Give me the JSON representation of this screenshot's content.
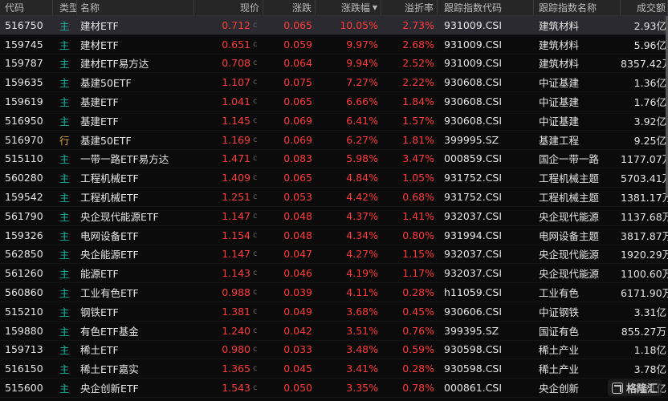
{
  "header": {
    "code": "代码",
    "type": "类型",
    "name": "名称",
    "price": "现价",
    "change": "涨跌",
    "pct": "涨跌幅",
    "premium": "溢折率",
    "index_code": "跟踪指数代码",
    "index_name": "跟踪指数名称",
    "volume": "成交额"
  },
  "price_suffix": "c",
  "colors": {
    "up": "#ff3b3b",
    "main_tag": "#18b6a4",
    "hang_tag": "#e0a030",
    "background": "#0b0b0b"
  },
  "rows": [
    {
      "code": "516750",
      "type": "主",
      "name": "建材ETF",
      "price": "0.712",
      "change": "0.065",
      "pct": "10.05%",
      "premium": "2.73%",
      "index_code": "931009.CSI",
      "index_name": "建筑材料",
      "volume": "2.93亿"
    },
    {
      "code": "159745",
      "type": "主",
      "name": "建材ETF",
      "price": "0.651",
      "change": "0.059",
      "pct": "9.97%",
      "premium": "2.68%",
      "index_code": "931009.CSI",
      "index_name": "建筑材料",
      "volume": "5.96亿"
    },
    {
      "code": "159787",
      "type": "主",
      "name": "建材ETF易方达",
      "price": "0.708",
      "change": "0.064",
      "pct": "9.94%",
      "premium": "2.52%",
      "index_code": "931009.CSI",
      "index_name": "建筑材料",
      "volume": "8357.42万"
    },
    {
      "code": "159635",
      "type": "主",
      "name": "基建50ETF",
      "price": "1.107",
      "change": "0.075",
      "pct": "7.27%",
      "premium": "2.22%",
      "index_code": "930608.CSI",
      "index_name": "中证基建",
      "volume": "1.36亿"
    },
    {
      "code": "159619",
      "type": "主",
      "name": "基建ETF",
      "price": "1.041",
      "change": "0.065",
      "pct": "6.66%",
      "premium": "1.84%",
      "index_code": "930608.CSI",
      "index_name": "中证基建",
      "volume": "1.76亿"
    },
    {
      "code": "516950",
      "type": "主",
      "name": "基建ETF",
      "price": "1.145",
      "change": "0.069",
      "pct": "6.41%",
      "premium": "1.57%",
      "index_code": "930608.CSI",
      "index_name": "中证基建",
      "volume": "3.92亿"
    },
    {
      "code": "516970",
      "type": "行",
      "name": "基建50ETF",
      "price": "1.169",
      "change": "0.069",
      "pct": "6.27%",
      "premium": "1.81%",
      "index_code": "399995.SZ",
      "index_name": "基建工程",
      "volume": "9.25亿"
    },
    {
      "code": "515110",
      "type": "主",
      "name": "一带一路ETF易方达",
      "price": "1.471",
      "change": "0.083",
      "pct": "5.98%",
      "premium": "3.47%",
      "index_code": "000859.CSI",
      "index_name": "国企一带一路",
      "volume": "1177.07万"
    },
    {
      "code": "560280",
      "type": "主",
      "name": "工程机械ETF",
      "price": "1.409",
      "change": "0.065",
      "pct": "4.84%",
      "premium": "1.05%",
      "index_code": "931752.CSI",
      "index_name": "工程机械主题",
      "volume": "5703.41万"
    },
    {
      "code": "159542",
      "type": "主",
      "name": "工程机械ETF",
      "price": "1.251",
      "change": "0.053",
      "pct": "4.42%",
      "premium": "0.68%",
      "index_code": "931752.CSI",
      "index_name": "工程机械主题",
      "volume": "1381.17万"
    },
    {
      "code": "561790",
      "type": "主",
      "name": "央企现代能源ETF",
      "price": "1.147",
      "change": "0.048",
      "pct": "4.37%",
      "premium": "1.41%",
      "index_code": "932037.CSI",
      "index_name": "央企现代能源",
      "volume": "1137.68万"
    },
    {
      "code": "159326",
      "type": "主",
      "name": "电网设备ETF",
      "price": "1.154",
      "change": "0.048",
      "pct": "4.34%",
      "premium": "0.80%",
      "index_code": "931994.CSI",
      "index_name": "电网设备主题",
      "volume": "3817.87万"
    },
    {
      "code": "562850",
      "type": "主",
      "name": "央企能源ETF",
      "price": "1.147",
      "change": "0.047",
      "pct": "4.27%",
      "premium": "1.15%",
      "index_code": "932037.CSI",
      "index_name": "央企现代能源",
      "volume": "1920.29万"
    },
    {
      "code": "561260",
      "type": "主",
      "name": "能源ETF",
      "price": "1.143",
      "change": "0.046",
      "pct": "4.19%",
      "premium": "1.17%",
      "index_code": "932037.CSI",
      "index_name": "央企现代能源",
      "volume": "1100.60万"
    },
    {
      "code": "560860",
      "type": "主",
      "name": "工业有色ETF",
      "price": "0.988",
      "change": "0.039",
      "pct": "4.11%",
      "premium": "0.28%",
      "index_code": "h11059.CSI",
      "index_name": "工业有色",
      "volume": "6171.90万"
    },
    {
      "code": "515210",
      "type": "主",
      "name": "钢铁ETF",
      "price": "1.381",
      "change": "0.049",
      "pct": "3.68%",
      "premium": "0.45%",
      "index_code": "930606.CSI",
      "index_name": "中证钢铁",
      "volume": "3.31亿"
    },
    {
      "code": "159880",
      "type": "主",
      "name": "有色ETF基金",
      "price": "1.240",
      "change": "0.042",
      "pct": "3.51%",
      "premium": "0.76%",
      "index_code": "399395.SZ",
      "index_name": "国证有色",
      "volume": "855.27万"
    },
    {
      "code": "159713",
      "type": "主",
      "name": "稀土ETF",
      "price": "0.980",
      "change": "0.033",
      "pct": "3.48%",
      "premium": "0.59%",
      "index_code": "930598.CSI",
      "index_name": "稀土产业",
      "volume": "1.18亿"
    },
    {
      "code": "516150",
      "type": "主",
      "name": "稀土ETF嘉实",
      "price": "1.365",
      "change": "0.045",
      "pct": "3.41%",
      "premium": "0.28%",
      "index_code": "930598.CSI",
      "index_name": "稀土产业",
      "volume": "3.78亿"
    },
    {
      "code": "515600",
      "type": "主",
      "name": "央企创新ETF",
      "price": "1.543",
      "change": "0.050",
      "pct": "3.35%",
      "premium": "0.78%",
      "index_code": "000861.CSI",
      "index_name": "央企创新",
      "volume": "2.71亿"
    }
  ],
  "watermark": "格隆汇"
}
